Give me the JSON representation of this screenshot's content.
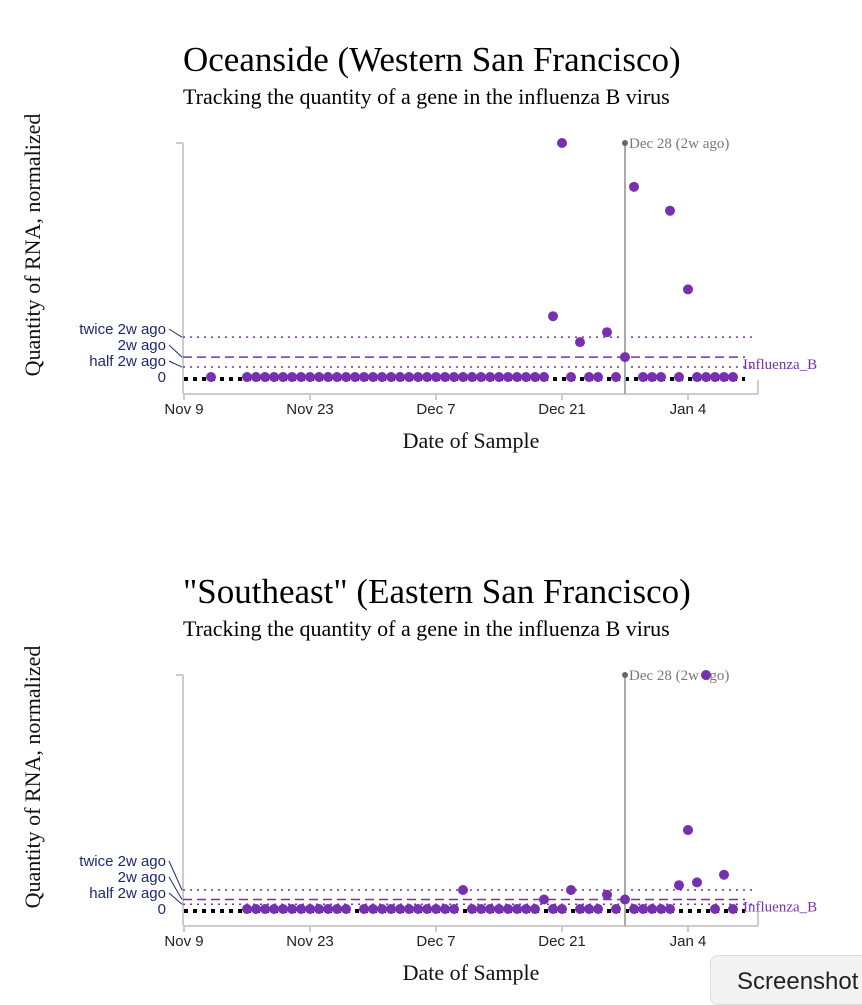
{
  "colors": {
    "series": "#7630b0",
    "label": "#1f2a6e",
    "ref": "#888888"
  },
  "chart_data": [
    {
      "type": "scatter",
      "title": "Oceanside (Western San Francisco)",
      "subtitle": "Tracking the quantity of a gene in the influenza B virus",
      "xlabel": "Date of Sample",
      "ylabel": "Quantity of RNA, normalized",
      "xticks": [
        "Nov 9",
        "Nov 23",
        "Dec 7",
        "Dec 21",
        "Jan 4"
      ],
      "yticks": [
        "twice 2w ago",
        "2w ago",
        "half 2w ago",
        "0"
      ],
      "reference_line": "Dec 28 (2w ago)",
      "series_name": "Influenza_B",
      "two_weeks_ago_value": 1,
      "x": [
        "Nov 12",
        "Nov 16",
        "Nov 17",
        "Nov 18",
        "Nov 19",
        "Nov 20",
        "Nov 21",
        "Nov 22",
        "Nov 23",
        "Nov 24",
        "Nov 25",
        "Nov 26",
        "Nov 27",
        "Nov 28",
        "Nov 29",
        "Nov 30",
        "Dec 1",
        "Dec 2",
        "Dec 3",
        "Dec 4",
        "Dec 5",
        "Dec 6",
        "Dec 7",
        "Dec 8",
        "Dec 9",
        "Dec 10",
        "Dec 11",
        "Dec 12",
        "Dec 13",
        "Dec 14",
        "Dec 15",
        "Dec 16",
        "Dec 17",
        "Dec 18",
        "Dec 19",
        "Dec 20",
        "Dec 21",
        "Dec 22",
        "Dec 23",
        "Dec 24",
        "Dec 25",
        "Dec 26",
        "Dec 27",
        "Dec 28",
        "Dec 29",
        "Dec 30",
        "Dec 31",
        "Jan 1",
        "Jan 2",
        "Jan 3",
        "Jan 4",
        "Jan 5",
        "Jan 6",
        "Jan 7",
        "Jan 8",
        "Jan 9"
      ],
      "y": [
        0,
        0,
        0,
        0,
        0,
        0,
        0,
        0,
        0,
        0,
        0,
        0,
        0,
        0,
        0,
        0,
        0,
        0,
        0,
        0,
        0,
        0,
        0,
        0,
        0,
        0,
        0,
        0,
        0,
        0,
        0,
        0,
        0,
        0,
        0,
        3.05,
        11.75,
        0,
        1.75,
        0,
        0,
        2.25,
        0,
        1,
        9.55,
        0,
        0,
        0,
        8.35,
        0,
        4.4,
        0,
        0,
        0,
        0,
        0
      ],
      "ylim": [
        0,
        11.75
      ]
    },
    {
      "type": "scatter",
      "title": "\"Southeast\" (Eastern San Francisco)",
      "subtitle": "Tracking the quantity of a gene in the influenza B virus",
      "xlabel": "Date of Sample",
      "ylabel": "Quantity of RNA, normalized",
      "xticks": [
        "Nov 9",
        "Nov 23",
        "Dec 7",
        "Dec 21",
        "Jan 4"
      ],
      "yticks": [
        "twice 2w ago",
        "2w ago",
        "half 2w ago",
        "0"
      ],
      "reference_line": "Dec 28 (2w ago)",
      "series_name": "Influenza_B",
      "two_weeks_ago_value": 1,
      "x": [
        "Nov 16",
        "Nov 17",
        "Nov 18",
        "Nov 19",
        "Nov 20",
        "Nov 21",
        "Nov 22",
        "Nov 23",
        "Nov 24",
        "Nov 25",
        "Nov 26",
        "Nov 27",
        "Nov 29",
        "Nov 30",
        "Dec 1",
        "Dec 2",
        "Dec 3",
        "Dec 4",
        "Dec 5",
        "Dec 6",
        "Dec 7",
        "Dec 8",
        "Dec 9",
        "Dec 10",
        "Dec 11",
        "Dec 12",
        "Dec 13",
        "Dec 14",
        "Dec 15",
        "Dec 16",
        "Dec 17",
        "Dec 18",
        "Dec 19",
        "Dec 20",
        "Dec 21",
        "Dec 22",
        "Dec 23",
        "Dec 24",
        "Dec 25",
        "Dec 26",
        "Dec 27",
        "Dec 28",
        "Dec 29",
        "Dec 30",
        "Dec 31",
        "Jan 1",
        "Jan 2",
        "Jan 3",
        "Jan 4",
        "Jan 5",
        "Jan 6",
        "Jan 7",
        "Jan 8",
        "Jan 9"
      ],
      "y": [
        0,
        0,
        0,
        0,
        0,
        0,
        0,
        0,
        0,
        0,
        0,
        0,
        0,
        0,
        0,
        0,
        0,
        0,
        0,
        0,
        0,
        0,
        0,
        2,
        0,
        0,
        0,
        0,
        0,
        0,
        0,
        0,
        1,
        0,
        0,
        2,
        0,
        0,
        0,
        1.5,
        0,
        1,
        0,
        0,
        0,
        0,
        0,
        2.5,
        8.3,
        2.8,
        24.6,
        0,
        3.6,
        0
      ],
      "ylim": [
        0,
        24.6
      ]
    }
  ],
  "screenshot_button": "Screenshot"
}
